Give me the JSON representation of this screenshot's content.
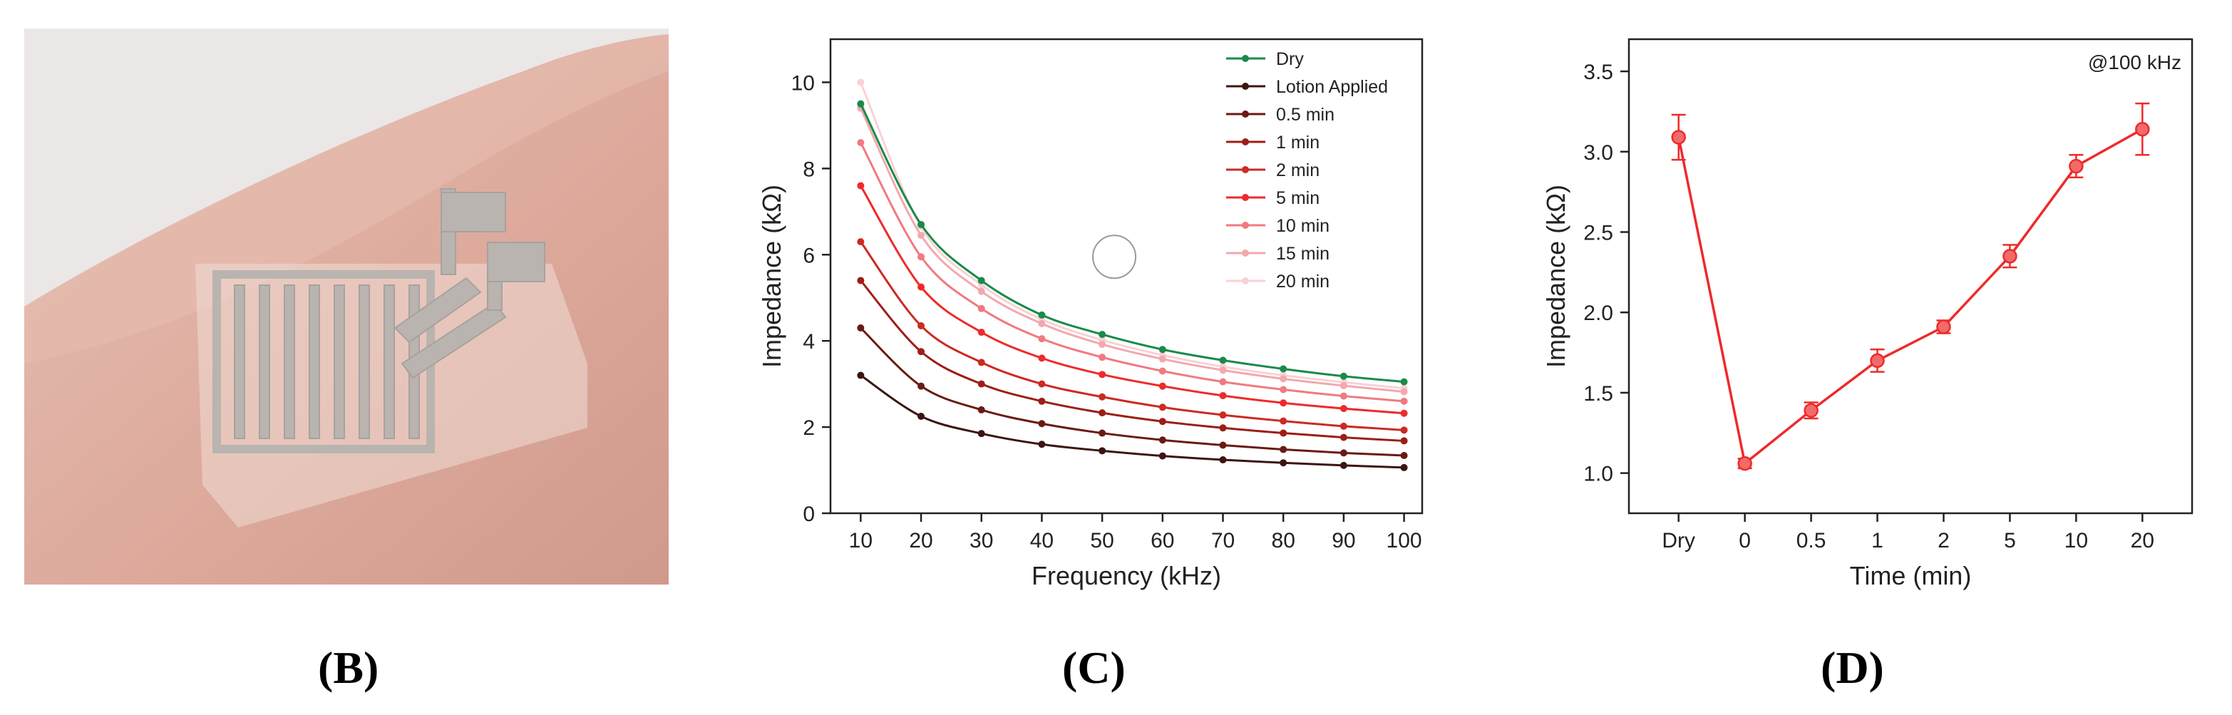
{
  "panels": {
    "b_label": "(B)",
    "c_label": "(C)",
    "d_label": "(D)"
  },
  "chart_data": [
    {
      "id": "C",
      "type": "line",
      "xlabel": "Frequency (kHz)",
      "ylabel": "Impedance (kΩ)",
      "xlim": [
        5,
        103
      ],
      "ylim": [
        0,
        11
      ],
      "xticks": [
        10,
        20,
        30,
        40,
        50,
        60,
        70,
        80,
        90,
        100
      ],
      "yticks": [
        0,
        2,
        4,
        6,
        8,
        10
      ],
      "legend_position": "top-right",
      "x": [
        10,
        20,
        30,
        40,
        50,
        60,
        70,
        80,
        90,
        100
      ],
      "series": [
        {
          "name": "Dry",
          "color": "#1a8a4a",
          "values": [
            9.5,
            6.7,
            5.4,
            4.6,
            4.15,
            3.8,
            3.55,
            3.35,
            3.18,
            3.05
          ]
        },
        {
          "name": "Lotion Applied",
          "color": "#3d1410",
          "values": [
            3.2,
            2.25,
            1.85,
            1.6,
            1.45,
            1.33,
            1.24,
            1.17,
            1.11,
            1.06
          ]
        },
        {
          "name": "0.5 min",
          "color": "#6a1a14",
          "values": [
            4.3,
            2.95,
            2.4,
            2.08,
            1.86,
            1.7,
            1.58,
            1.48,
            1.4,
            1.34
          ]
        },
        {
          "name": "1 min",
          "color": "#9c1e16",
          "values": [
            5.4,
            3.75,
            3.0,
            2.6,
            2.33,
            2.13,
            1.98,
            1.86,
            1.76,
            1.68
          ]
        },
        {
          "name": "2 min",
          "color": "#cc2a22",
          "values": [
            6.3,
            4.35,
            3.5,
            3.0,
            2.7,
            2.46,
            2.28,
            2.14,
            2.02,
            1.93
          ]
        },
        {
          "name": "5 min",
          "color": "#ee2a2a",
          "values": [
            7.6,
            5.25,
            4.2,
            3.6,
            3.22,
            2.95,
            2.73,
            2.56,
            2.43,
            2.32
          ]
        },
        {
          "name": "10 min",
          "color": "#f07a80",
          "values": [
            8.6,
            5.95,
            4.75,
            4.05,
            3.62,
            3.3,
            3.05,
            2.87,
            2.72,
            2.6
          ]
        },
        {
          "name": "15 min",
          "color": "#f3a8ae",
          "values": [
            9.4,
            6.45,
            5.15,
            4.4,
            3.92,
            3.58,
            3.32,
            3.12,
            2.96,
            2.82
          ]
        },
        {
          "name": "20 min",
          "color": "#f8d2d6",
          "values": [
            10.0,
            6.65,
            5.3,
            4.5,
            4.02,
            3.67,
            3.4,
            3.2,
            3.04,
            2.9
          ]
        }
      ]
    },
    {
      "id": "D",
      "type": "line",
      "annotation": "@100 kHz",
      "xlabel": "Time (min)",
      "ylabel": "Impedance (kΩ)",
      "ylim": [
        0.75,
        3.7
      ],
      "yticks": [
        1.0,
        1.5,
        2.0,
        2.5,
        3.0,
        3.5
      ],
      "ytick_labels": [
        "1.0",
        "1.5",
        "2.0",
        "2.5",
        "3.0",
        "3.5"
      ],
      "color": "#ee2a2a",
      "categories": [
        "Dry",
        "0",
        "0.5",
        "1",
        "2",
        "5",
        "10",
        "20"
      ],
      "values": [
        3.09,
        1.06,
        1.39,
        1.7,
        1.91,
        2.35,
        2.91,
        3.14
      ],
      "errors": [
        0.14,
        0.03,
        0.05,
        0.07,
        0.04,
        0.07,
        0.07,
        0.16
      ]
    }
  ]
}
